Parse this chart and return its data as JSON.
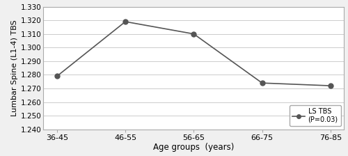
{
  "x_labels": [
    "36-45",
    "46-55",
    "56-65",
    "66-75",
    "76-85"
  ],
  "y_values": [
    1.279,
    1.319,
    1.31,
    1.274,
    1.272
  ],
  "ylabel": "Lumbar Spine (L1-4) TBS",
  "xlabel": "Age groups  (years)",
  "ylim": [
    1.24,
    1.33
  ],
  "yticks": [
    1.24,
    1.25,
    1.26,
    1.27,
    1.28,
    1.29,
    1.3,
    1.31,
    1.32,
    1.33
  ],
  "legend_label": "LS TBS",
  "legend_sublabel": "(P=0.03)",
  "line_color": "#555555",
  "marker": "o",
  "marker_color": "#555555",
  "marker_size": 5,
  "figure_facecolor": "#f0f0f0",
  "plot_facecolor": "#ffffff",
  "grid_color": "#cccccc"
}
